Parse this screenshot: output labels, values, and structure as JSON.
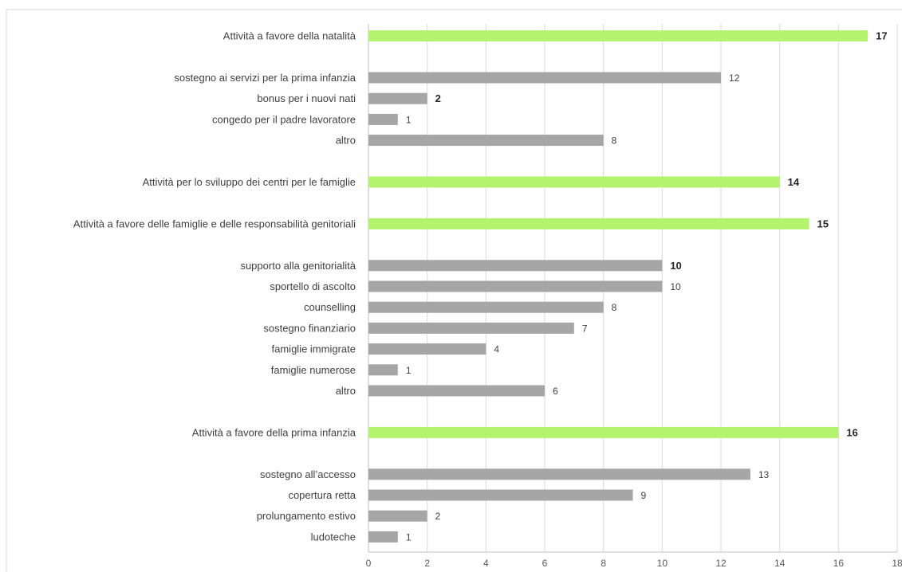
{
  "chart_data": {
    "type": "bar",
    "orientation": "horizontal",
    "grid": true,
    "xlim": [
      0,
      18
    ],
    "x_ticks": [
      0,
      2,
      4,
      6,
      8,
      10,
      12,
      14,
      16,
      18
    ],
    "colors": {
      "category": "#b3f36e",
      "subcategory": "#a6a6a6",
      "grid": "#d9d9d9",
      "axis": "#bfbfbf"
    },
    "bars": [
      {
        "label": "Attività a favore della natalità",
        "value": 17,
        "kind": "category",
        "bold": true
      },
      {
        "label": "sostegno ai servizi per la prima infanzia",
        "value": 12,
        "kind": "subcategory",
        "bold": false
      },
      {
        "label": "bonus per i nuovi nati",
        "value": 2,
        "kind": "subcategory",
        "bold": true
      },
      {
        "label": "congedo per il padre lavoratore",
        "value": 1,
        "kind": "subcategory",
        "bold": false
      },
      {
        "label": "altro",
        "value": 8,
        "kind": "subcategory",
        "bold": false
      },
      {
        "label": "Attività per lo sviluppo dei centri per le famiglie",
        "value": 14,
        "kind": "category",
        "bold": true
      },
      {
        "label": "Attività a favore delle famiglie e delle responsabilità genitoriali",
        "value": 15,
        "kind": "category",
        "bold": true
      },
      {
        "label": "supporto alla genitorialità",
        "value": 10,
        "kind": "subcategory",
        "bold": true
      },
      {
        "label": "sportello di ascolto",
        "value": 10,
        "kind": "subcategory",
        "bold": false
      },
      {
        "label": "counselling",
        "value": 8,
        "kind": "subcategory",
        "bold": false
      },
      {
        "label": "sostegno finanziario",
        "value": 7,
        "kind": "subcategory",
        "bold": false
      },
      {
        "label": "famiglie immigrate",
        "value": 4,
        "kind": "subcategory",
        "bold": false
      },
      {
        "label": "famiglie numerose",
        "value": 1,
        "kind": "subcategory",
        "bold": false
      },
      {
        "label": "altro",
        "value": 6,
        "kind": "subcategory",
        "bold": false
      },
      {
        "label": "Attività a favore della prima infanzia",
        "value": 16,
        "kind": "category",
        "bold": true
      },
      {
        "label": "sostegno all’accesso",
        "value": 13,
        "kind": "subcategory",
        "bold": false
      },
      {
        "label": "copertura retta",
        "value": 9,
        "kind": "subcategory",
        "bold": false
      },
      {
        "label": "prolungamento estivo",
        "value": 2,
        "kind": "subcategory",
        "bold": false
      },
      {
        "label": "ludoteche",
        "value": 1,
        "kind": "subcategory",
        "bold": false
      }
    ]
  }
}
